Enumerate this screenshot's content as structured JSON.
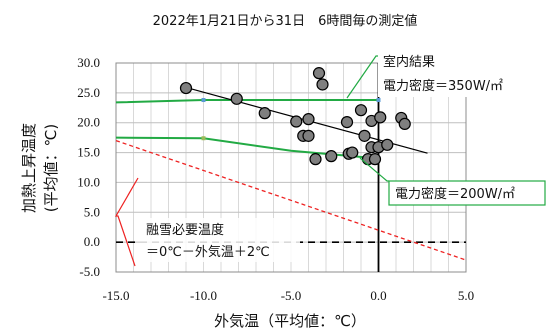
{
  "chart_data": {
    "type": "scatter",
    "title": "2022年1月21日から31日　6時間毎の測定値",
    "xlabel": "外気温（平均値：℃）",
    "ylabel_line1": "加熱上昇温度",
    "ylabel_line2": "(平均値：℃)",
    "xlim": [
      -15.0,
      5.0
    ],
    "ylim": [
      -5.0,
      30.0
    ],
    "x_ticks": [
      "-15.0",
      "-10.0",
      "-5.0",
      "0.0",
      "5.0"
    ],
    "x_tick_values": [
      -15,
      -10,
      -5,
      0,
      5
    ],
    "y_ticks": [
      "30.0",
      "25.0",
      "20.0",
      "15.0",
      "10.0",
      "5.0",
      "0.0",
      "-5.0"
    ],
    "y_tick_values": [
      30,
      25,
      20,
      15,
      10,
      5,
      0,
      -5
    ],
    "grid": true,
    "points": [
      {
        "x": -11.0,
        "y": 25.8
      },
      {
        "x": -8.1,
        "y": 24.0
      },
      {
        "x": -6.5,
        "y": 21.6
      },
      {
        "x": -4.7,
        "y": 20.2
      },
      {
        "x": -4.3,
        "y": 17.8
      },
      {
        "x": -4.0,
        "y": 20.6
      },
      {
        "x": -4.0,
        "y": 17.8
      },
      {
        "x": -3.6,
        "y": 13.9
      },
      {
        "x": -3.4,
        "y": 28.3
      },
      {
        "x": -3.2,
        "y": 26.4
      },
      {
        "x": -2.7,
        "y": 14.4
      },
      {
        "x": -1.7,
        "y": 14.8
      },
      {
        "x": -1.8,
        "y": 20.1
      },
      {
        "x": -1.5,
        "y": 15.0
      },
      {
        "x": -1.0,
        "y": 22.1
      },
      {
        "x": -0.8,
        "y": 17.8
      },
      {
        "x": -0.6,
        "y": 13.9
      },
      {
        "x": -0.4,
        "y": 15.9
      },
      {
        "x": -0.2,
        "y": 13.9
      },
      {
        "x": 0.0,
        "y": 15.9
      },
      {
        "x": -0.4,
        "y": 20.3
      },
      {
        "x": 0.1,
        "y": 20.9
      },
      {
        "x": 0.5,
        "y": 16.3
      },
      {
        "x": 1.3,
        "y": 20.8
      },
      {
        "x": 1.5,
        "y": 19.8
      }
    ],
    "trend_line": {
      "x": [
        -11.0,
        2.8
      ],
      "y": [
        25.9,
        14.9
      ]
    },
    "green_line_350": {
      "x": [
        -15.0,
        -10.0,
        0.0
      ],
      "y": [
        23.4,
        23.8,
        23.8
      ]
    },
    "green_line_200": {
      "x": [
        -15.0,
        -10.0,
        -5.0,
        0.0
      ],
      "y": [
        17.5,
        17.4,
        15.3,
        14.0
      ]
    },
    "required_temp_line": {
      "x": [
        -15.0,
        5.0
      ],
      "y": [
        17.0,
        -3.0
      ]
    },
    "zero_line": {
      "x": [
        -15.0,
        5.0
      ],
      "y": [
        0.0,
        0.0
      ]
    },
    "zero_vertical": {
      "x": [
        0.0,
        0.0
      ],
      "y": [
        -5.0,
        30.0
      ]
    },
    "small_markers": [
      {
        "x": -10.0,
        "y": 23.8,
        "color": "#5b9bd5"
      },
      {
        "x": -10.0,
        "y": 17.4,
        "color": "#9bbb59"
      },
      {
        "x": 0.0,
        "y": 23.8,
        "color": "#5b9bd5"
      }
    ],
    "annotation_350_line1": "室内結果",
    "annotation_350_line2": "電力密度＝350W/㎡",
    "annotation_200": "電力密度＝200W/㎡",
    "annotation_req_line1": "融雪必要温度",
    "annotation_req_line2": "＝0℃－外気温＋2℃",
    "colors": {
      "green": "#22aa44",
      "red": "#ee2222",
      "point_fill": "#7f7f7f",
      "grid": "#d9d9d9"
    }
  }
}
